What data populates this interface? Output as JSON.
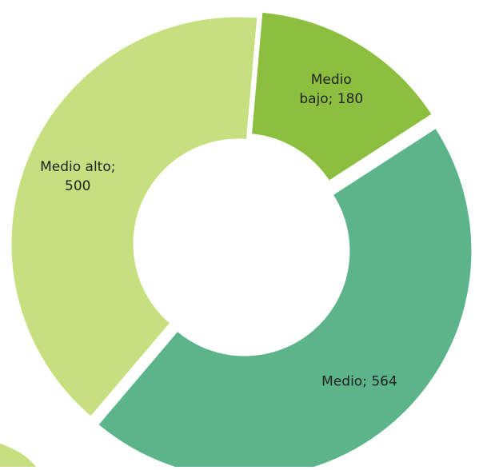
{
  "chart_data": {
    "type": "donut",
    "labels": [
      [
        "Medio",
        "bajo;  180"
      ],
      [
        "Medio;  564"
      ],
      [
        "Medio alto;",
        "500"
      ]
    ],
    "values": [
      180,
      564,
      500
    ],
    "colors": [
      "#8cbf3f",
      "#5cb58a",
      "#c6df7f"
    ]
  }
}
